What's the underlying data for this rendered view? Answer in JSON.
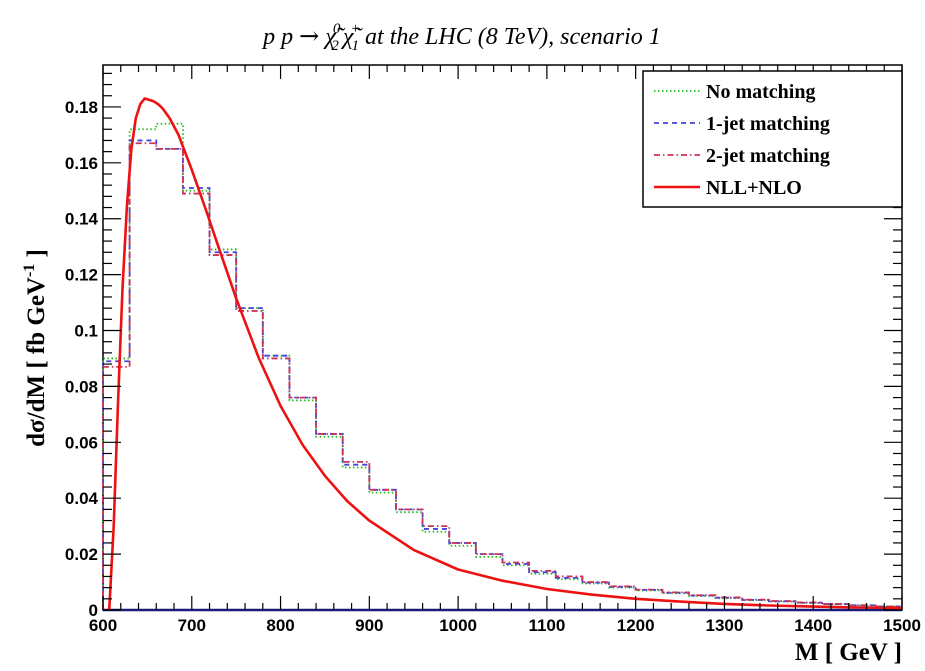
{
  "chart_data": {
    "type": "line",
    "title": {
      "prefix": "p p ",
      "arrow": "→",
      "chi": "χ̃",
      "sub1": "2",
      "sup1": "0",
      "sub2": "1",
      "sup2": "+",
      "suffix": " at the LHC (8 TeV), scenario 1"
    },
    "xlabel": "M  [ GeV ]",
    "ylabel": {
      "main": "dσ/dM  [ fb GeV",
      "sup": "-1",
      "end": " ]"
    },
    "xlim": [
      600,
      1500
    ],
    "ylim": [
      0,
      0.195
    ],
    "xticks": [
      600,
      700,
      800,
      900,
      1000,
      1100,
      1200,
      1300,
      1400,
      1500
    ],
    "yticks": [
      0,
      0.02,
      0.04,
      0.06,
      0.08,
      0.1,
      0.12,
      0.14,
      0.16,
      0.18
    ],
    "ytick_labels": [
      "0",
      "0.02",
      "0.04",
      "0.06",
      "0.08",
      "0.1",
      "0.12",
      "0.14",
      "0.16",
      "0.18"
    ],
    "legend_position": "top-right",
    "bin_edges": [
      600,
      630,
      660,
      690,
      720,
      750,
      780,
      810,
      840,
      870,
      900,
      930,
      960,
      990,
      1020,
      1050,
      1080,
      1110,
      1140,
      1170,
      1200,
      1230,
      1260,
      1290,
      1320,
      1350,
      1380,
      1410,
      1440,
      1470,
      1500
    ],
    "series": [
      {
        "name": "No matching",
        "kind": "hist",
        "color": "#22bb22",
        "dash": "1.5 2.5",
        "values": [
          0.09,
          0.172,
          0.174,
          0.15,
          0.129,
          0.108,
          0.091,
          0.075,
          0.062,
          0.051,
          0.042,
          0.035,
          0.028,
          0.023,
          0.019,
          0.016,
          0.013,
          0.011,
          0.0095,
          0.008,
          0.007,
          0.006,
          0.005,
          0.0042,
          0.0035,
          0.003,
          0.0025,
          0.002,
          0.0016,
          0.0012
        ]
      },
      {
        "name": "1-jet matching",
        "kind": "hist",
        "color": "#4444dd",
        "dash": "5 4",
        "values": [
          0.089,
          0.168,
          0.165,
          0.151,
          0.128,
          0.108,
          0.091,
          0.076,
          0.063,
          0.052,
          0.043,
          0.036,
          0.029,
          0.024,
          0.02,
          0.0165,
          0.0135,
          0.0115,
          0.0098,
          0.0083,
          0.0072,
          0.0062,
          0.0052,
          0.0044,
          0.0036,
          0.0031,
          0.0026,
          0.0021,
          0.0017,
          0.0013
        ]
      },
      {
        "name": "2-jet matching",
        "kind": "hist",
        "color": "#cc3355",
        "dash": "6 3 1.5 3",
        "values": [
          0.087,
          0.167,
          0.165,
          0.149,
          0.127,
          0.107,
          0.09,
          0.076,
          0.063,
          0.053,
          0.043,
          0.036,
          0.03,
          0.024,
          0.02,
          0.017,
          0.014,
          0.012,
          0.01,
          0.0085,
          0.0073,
          0.0063,
          0.0053,
          0.0045,
          0.0037,
          0.0032,
          0.0027,
          0.0022,
          0.0017,
          0.0013
        ]
      },
      {
        "name": "NLL+NLO",
        "kind": "curve",
        "color": "#ee1111",
        "x": [
          607,
          612,
          617,
          622,
          627,
          632,
          637,
          642,
          647,
          652,
          657,
          662,
          667,
          675,
          685,
          700,
          715,
          730,
          750,
          775,
          800,
          825,
          850,
          875,
          900,
          950,
          1000,
          1050,
          1100,
          1150,
          1200,
          1250,
          1300,
          1350,
          1400,
          1450,
          1500
        ],
        "y": [
          0.0,
          0.03,
          0.075,
          0.115,
          0.145,
          0.165,
          0.176,
          0.181,
          0.183,
          0.1825,
          0.182,
          0.181,
          0.1795,
          0.176,
          0.17,
          0.1575,
          0.144,
          0.13,
          0.1115,
          0.0905,
          0.073,
          0.059,
          0.048,
          0.039,
          0.032,
          0.0215,
          0.0145,
          0.0105,
          0.0075,
          0.0055,
          0.004,
          0.003,
          0.0022,
          0.0016,
          0.0012,
          0.0009,
          0.0007
        ]
      }
    ]
  }
}
